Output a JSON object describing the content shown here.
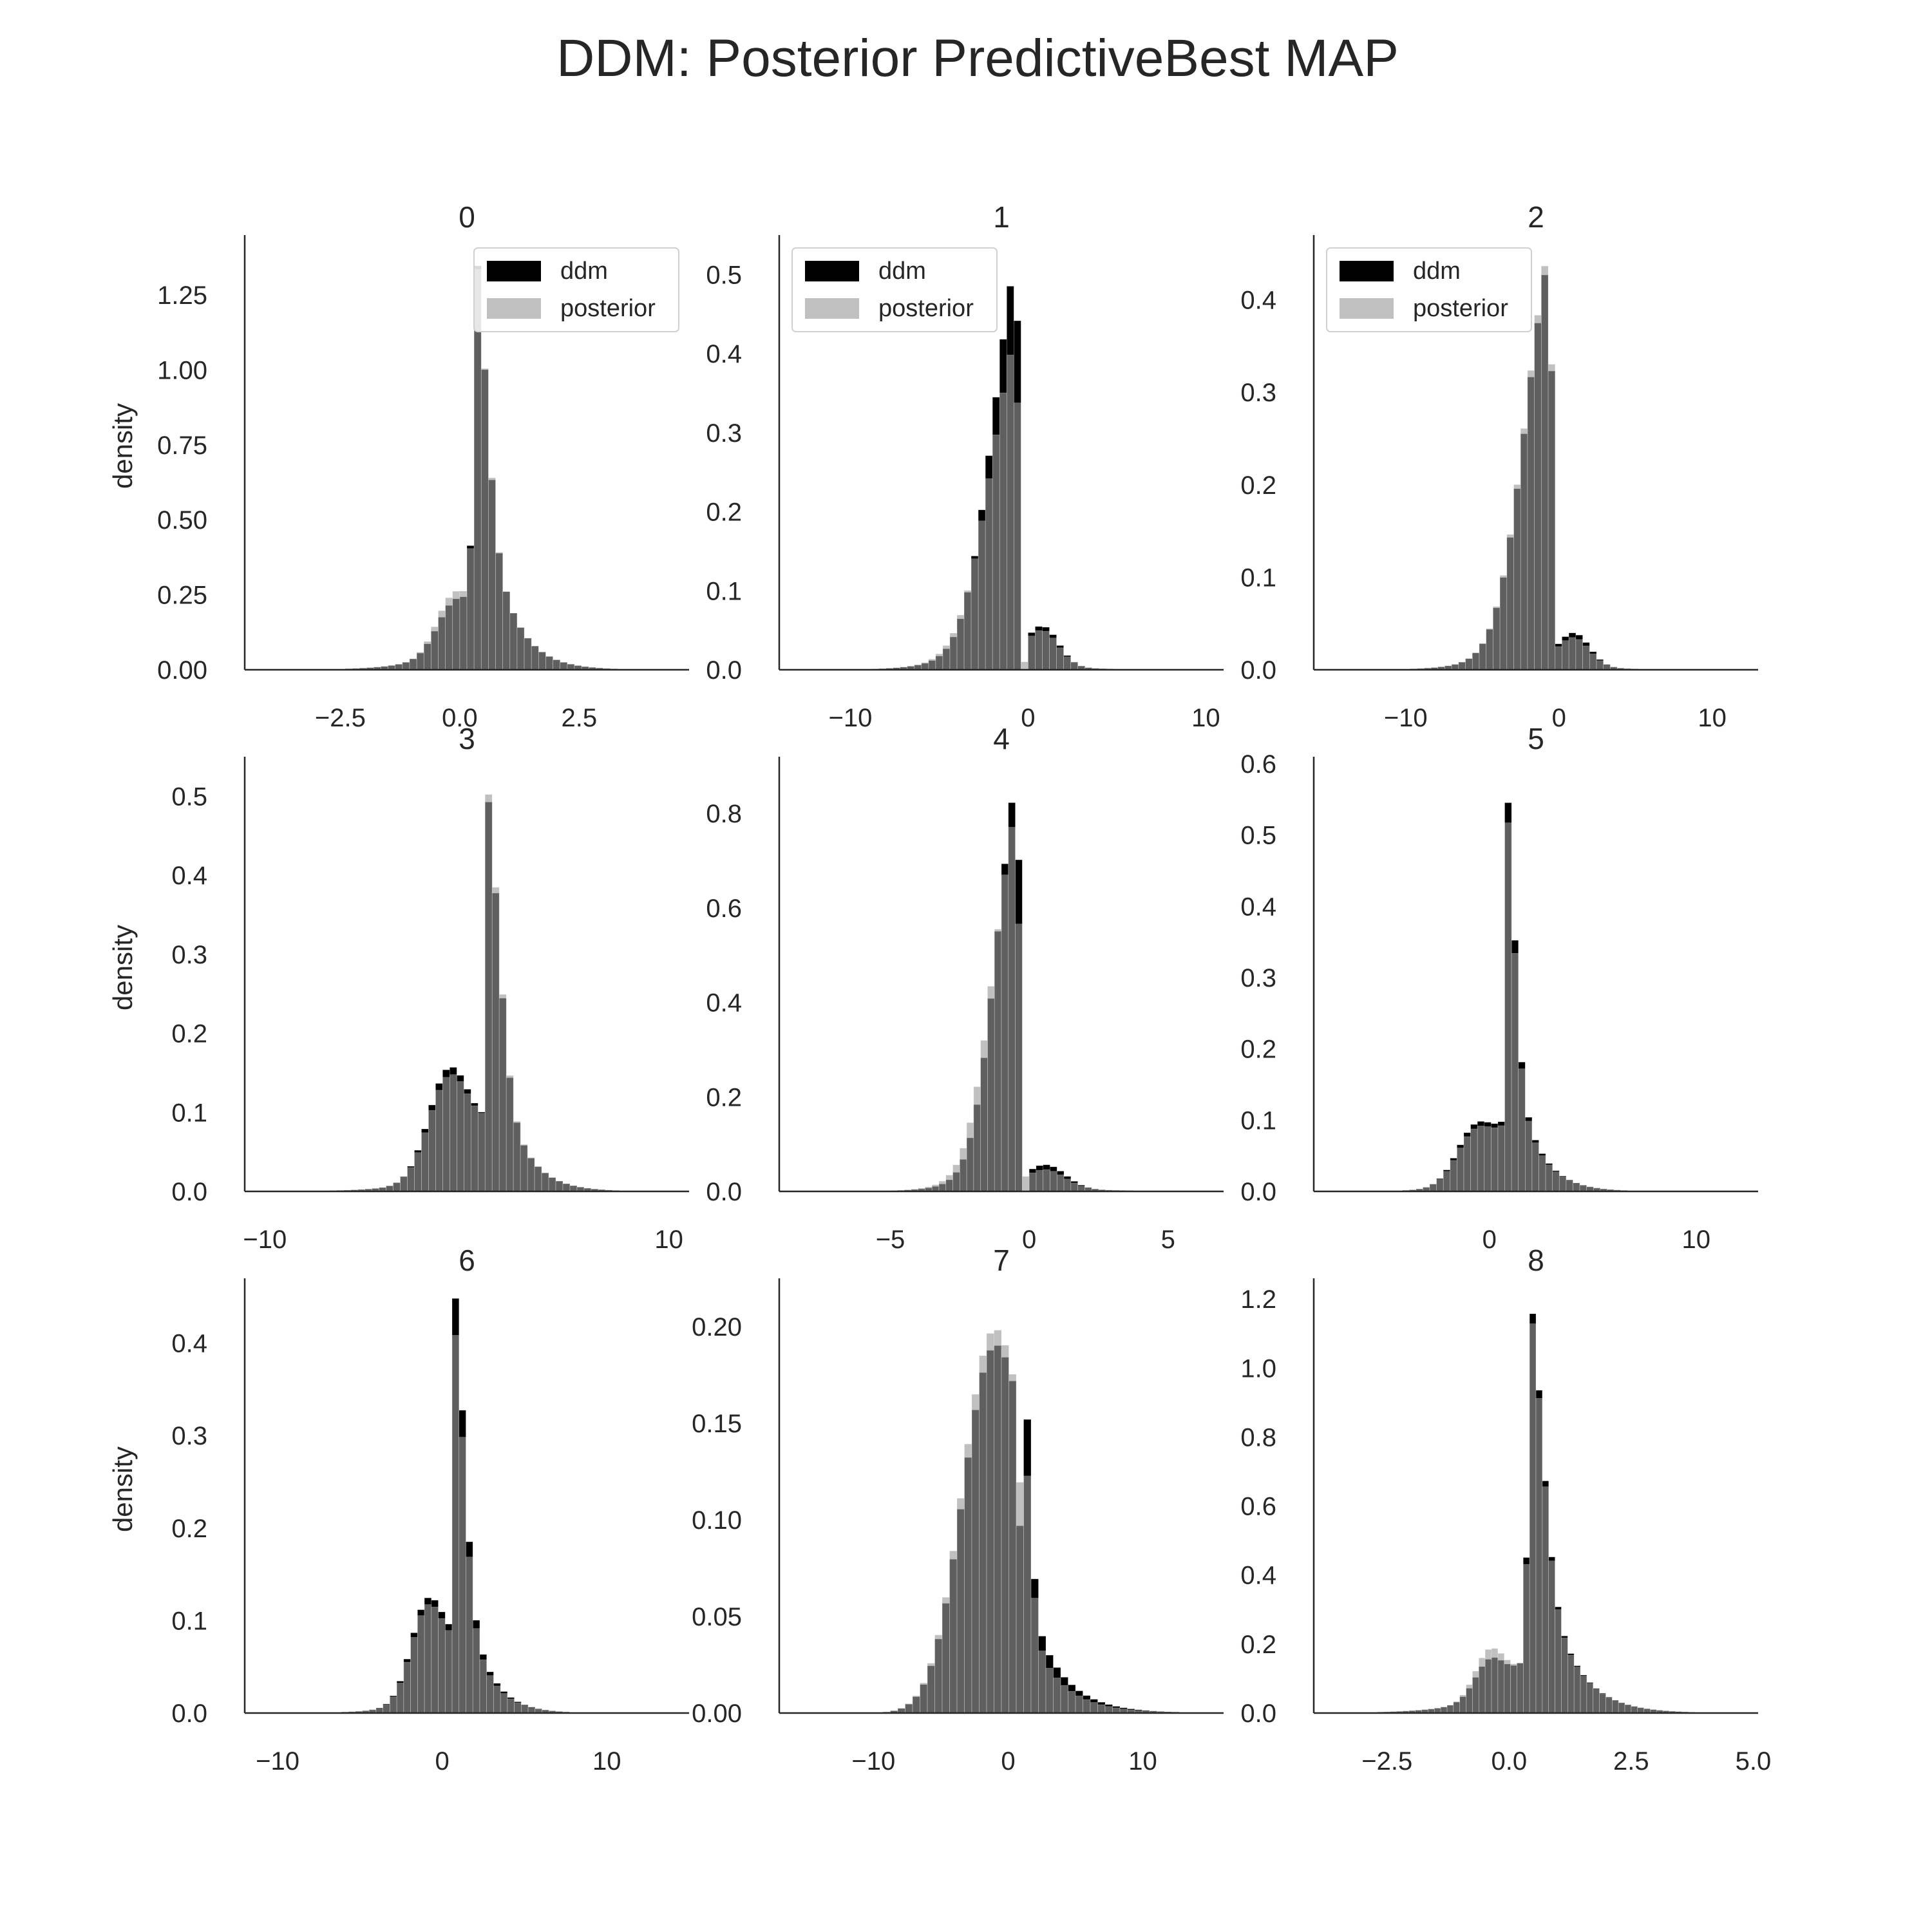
{
  "figure": {
    "title": "DDM: Posterior PredictiveBest MAP",
    "ylabel": "density"
  },
  "legend": {
    "entries": [
      "ddm",
      "posterior"
    ]
  },
  "colors": {
    "ddm": "#000000",
    "posterior": "#9a9a9a",
    "spine": "#262626",
    "text": "#262626"
  },
  "chart_data": [
    {
      "type": "bar",
      "title": "0",
      "xlim": [
        -4.5,
        4.8
      ],
      "ylim": [
        0,
        1.45
      ],
      "xticks": [
        -2.5,
        0.0,
        2.5
      ],
      "xticklabels": [
        "−2.5",
        "0.0",
        "2.5"
      ],
      "yticks": [
        0,
        0.25,
        0.5,
        0.75,
        1.0,
        1.25
      ],
      "yticklabels": [
        "0.00",
        "0.25",
        "0.50",
        "0.75",
        "1.00",
        "1.25"
      ],
      "ylabel": "density",
      "legend": "top-right",
      "series": [
        {
          "name": "ddm",
          "center": 0.35,
          "peak": 1.39,
          "sl": 0.22,
          "sr": 0.52,
          "ratio": 0.4,
          "lcenter": -0.15,
          "lsigma": 0.35,
          "lpeak": 0.13,
          "gap": 0.2,
          "gapval": 0.0,
          "binw": 0.15
        },
        {
          "name": "posterior",
          "center": 0.36,
          "peak": 1.36,
          "sl": 0.22,
          "sr": 0.52,
          "ratio": 0.4,
          "lcenter": -0.15,
          "lsigma": 0.35,
          "lpeak": 0.16,
          "gap": 0.2,
          "gapval": 0.01,
          "binw": 0.15
        }
      ]
    },
    {
      "type": "bar",
      "title": "1",
      "xlim": [
        -14,
        11
      ],
      "ylim": [
        0,
        0.55
      ],
      "xticks": [
        -10,
        0,
        10
      ],
      "xticklabels": [
        "−10",
        "0",
        "10"
      ],
      "yticks": [
        0,
        0.1,
        0.2,
        0.3,
        0.4,
        0.5
      ],
      "yticklabels": [
        "0.0",
        "0.1",
        "0.2",
        "0.3",
        "0.4",
        "0.5"
      ],
      "ylabel": "",
      "legend": "top-left",
      "series": [
        {
          "name": "ddm",
          "center": -0.7,
          "peak": 0.53,
          "sl": 1.5,
          "sr": 0.5,
          "ratio": 0.6,
          "lcenter": 0.8,
          "lsigma": 0.9,
          "lpeak": 0.05,
          "gap": 0.0,
          "gapval": 0.0,
          "binw": 0.4,
          "mirror": true
        },
        {
          "name": "posterior",
          "center": -0.8,
          "peak": 0.42,
          "sl": 1.6,
          "sr": 0.6,
          "ratio": 0.6,
          "lcenter": 0.8,
          "lsigma": 0.9,
          "lpeak": 0.045,
          "gap": 0.0,
          "gapval": 0.01,
          "binw": 0.4,
          "mirror": true
        }
      ]
    },
    {
      "type": "bar",
      "title": "2",
      "xlim": [
        -16,
        13
      ],
      "ylim": [
        0,
        0.47
      ],
      "xticks": [
        -10,
        0,
        10
      ],
      "xticklabels": [
        "−10",
        "0",
        "10"
      ],
      "yticks": [
        0,
        0.1,
        0.2,
        0.3,
        0.4
      ],
      "yticklabels": [
        "0.0",
        "0.1",
        "0.2",
        "0.3",
        "0.4"
      ],
      "ylabel": "",
      "legend": "top-left",
      "series": [
        {
          "name": "ddm",
          "center": -0.8,
          "peak": 0.44,
          "sl": 1.7,
          "sr": 0.6,
          "ratio": 0.6,
          "lcenter": 1.0,
          "lsigma": 1.0,
          "lpeak": 0.035,
          "gap": 0.0,
          "gapval": 0.0,
          "binw": 0.45,
          "mirror": true
        },
        {
          "name": "posterior",
          "center": -0.8,
          "peak": 0.45,
          "sl": 1.7,
          "sr": 0.6,
          "ratio": 0.6,
          "lcenter": 1.0,
          "lsigma": 1.0,
          "lpeak": 0.03,
          "gap": 0.0,
          "gapval": 0.01,
          "binw": 0.45,
          "mirror": true
        }
      ]
    },
    {
      "type": "bar",
      "title": "3",
      "xlim": [
        -11,
        11
      ],
      "ylim": [
        0,
        0.55
      ],
      "xticks": [
        -10,
        10
      ],
      "xticklabels": [
        "−10",
        "10"
      ],
      "yticks": [
        0,
        0.1,
        0.2,
        0.3,
        0.4,
        0.5
      ],
      "yticklabels": [
        "0.0",
        "0.1",
        "0.2",
        "0.3",
        "0.4",
        "0.5"
      ],
      "ylabel": "density",
      "legend": "none",
      "series": [
        {
          "name": "ddm",
          "center": 1.0,
          "peak": 0.51,
          "sl": 0.6,
          "sr": 1.2,
          "ratio": 0.5,
          "lcenter": -0.9,
          "lsigma": 1.0,
          "lpeak": 0.13,
          "gap": 0.2,
          "gapval": 0.0,
          "binw": 0.35
        },
        {
          "name": "posterior",
          "center": 1.0,
          "peak": 0.52,
          "sl": 0.6,
          "sr": 1.2,
          "ratio": 0.5,
          "lcenter": -0.9,
          "lsigma": 1.0,
          "lpeak": 0.12,
          "gap": 0.2,
          "gapval": 0.02,
          "binw": 0.35
        }
      ]
    },
    {
      "type": "bar",
      "title": "4",
      "xlim": [
        -9,
        7
      ],
      "ylim": [
        0,
        0.92
      ],
      "xticks": [
        -5,
        0,
        5
      ],
      "xticklabels": [
        "−5",
        "0",
        "5"
      ],
      "yticks": [
        0,
        0.2,
        0.4,
        0.6,
        0.8
      ],
      "yticklabels": [
        "0.0",
        "0.2",
        "0.4",
        "0.6",
        "0.8"
      ],
      "ylabel": "",
      "legend": "none",
      "series": [
        {
          "name": "ddm",
          "center": -0.5,
          "peak": 0.88,
          "sl": 0.8,
          "sr": 0.35,
          "ratio": 0.6,
          "lcenter": 0.6,
          "lsigma": 0.7,
          "lpeak": 0.05,
          "gap": 0.0,
          "gapval": 0.0,
          "binw": 0.25,
          "mirror": true
        },
        {
          "name": "posterior",
          "center": -0.6,
          "peak": 0.78,
          "sl": 0.85,
          "sr": 0.4,
          "ratio": 0.6,
          "lcenter": 0.6,
          "lsigma": 0.7,
          "lpeak": 0.04,
          "gap": 0.0,
          "gapval": 0.01,
          "binw": 0.25,
          "mirror": true
        }
      ]
    },
    {
      "type": "bar",
      "title": "5",
      "xlim": [
        -8.5,
        13
      ],
      "ylim": [
        0,
        0.61
      ],
      "xticks": [
        0,
        10
      ],
      "xticklabels": [
        "0",
        "10"
      ],
      "yticks": [
        0,
        0.1,
        0.2,
        0.3,
        0.4,
        0.5,
        0.6
      ],
      "yticklabels": [
        "0.0",
        "0.1",
        "0.2",
        "0.3",
        "0.4",
        "0.5",
        "0.6"
      ],
      "ylabel": "",
      "legend": "none",
      "series": [
        {
          "name": "ddm",
          "center": 0.8,
          "peak": 0.58,
          "sl": 0.4,
          "sr": 1.1,
          "ratio": 0.55,
          "lcenter": -0.7,
          "lsigma": 0.9,
          "lpeak": 0.07,
          "gap": 0.15,
          "gapval": 0.0,
          "binw": 0.33
        },
        {
          "name": "posterior",
          "center": 0.8,
          "peak": 0.55,
          "sl": 0.4,
          "sr": 1.1,
          "ratio": 0.55,
          "lcenter": -0.7,
          "lsigma": 0.9,
          "lpeak": 0.065,
          "gap": 0.15,
          "gapval": 0.02,
          "binw": 0.33
        }
      ]
    },
    {
      "type": "bar",
      "title": "6",
      "xlim": [
        -12,
        15
      ],
      "ylim": [
        0,
        0.47
      ],
      "xticks": [
        -10,
        0,
        10
      ],
      "xticklabels": [
        "−10",
        "0",
        "10"
      ],
      "yticks": [
        0,
        0.1,
        0.2,
        0.3,
        0.4
      ],
      "yticklabels": [
        "0.0",
        "0.1",
        "0.2",
        "0.3",
        "0.4"
      ],
      "ylabel": "density",
      "legend": "none",
      "series": [
        {
          "name": "ddm",
          "center": 0.8,
          "peak": 0.45,
          "sl": 0.55,
          "sr": 1.3,
          "ratio": 0.5,
          "lcenter": -0.9,
          "lsigma": 1.0,
          "lpeak": 0.1,
          "gap": 0.2,
          "gapval": 0.0,
          "binw": 0.42
        },
        {
          "name": "posterior",
          "center": 0.8,
          "peak": 0.41,
          "sl": 0.55,
          "sr": 1.3,
          "ratio": 0.5,
          "lcenter": -0.9,
          "lsigma": 1.0,
          "lpeak": 0.095,
          "gap": 0.2,
          "gapval": 0.02,
          "binw": 0.42
        }
      ]
    },
    {
      "type": "bar",
      "title": "7",
      "xlim": [
        -17,
        16
      ],
      "ylim": [
        0,
        0.225
      ],
      "xticks": [
        -10,
        0,
        10
      ],
      "xticklabels": [
        "−10",
        "0",
        "10"
      ],
      "yticks": [
        0,
        0.05,
        0.1,
        0.15,
        0.2
      ],
      "yticklabels": [
        "0.00",
        "0.05",
        "0.10",
        "0.15",
        "0.20"
      ],
      "ylabel": "",
      "legend": "none",
      "series": [
        {
          "name": "ddm",
          "center": 0.9,
          "peak": 0.22,
          "sl": 0.55,
          "sr": 2.3,
          "ratio": 0.65,
          "lcenter": -1.1,
          "lsigma": 2.3,
          "lpeak": 0.18,
          "gap": 0.45,
          "gapval": 0.02,
          "binw": 0.55
        },
        {
          "name": "posterior",
          "center": 0.9,
          "peak": 0.17,
          "sl": 0.6,
          "sr": 2.3,
          "ratio": 0.65,
          "lcenter": -1.1,
          "lsigma": 2.3,
          "lpeak": 0.19,
          "gap": 0.45,
          "gapval": 0.06,
          "binw": 0.55
        }
      ]
    },
    {
      "type": "bar",
      "title": "8",
      "xlim": [
        -4,
        5.1
      ],
      "ylim": [
        0,
        1.26
      ],
      "xticks": [
        -2.5,
        0.0,
        2.5,
        5.0
      ],
      "xticklabels": [
        "−2.5",
        "0.0",
        "2.5",
        "5.0"
      ],
      "yticks": [
        0,
        0.2,
        0.4,
        0.6,
        0.8,
        1.0,
        1.2
      ],
      "yticklabels": [
        "0.0",
        "0.2",
        "0.4",
        "0.6",
        "0.8",
        "1.0",
        "1.2"
      ],
      "ylabel": "",
      "legend": "none",
      "series": [
        {
          "name": "ddm",
          "center": 0.45,
          "peak": 1.2,
          "sl": 0.25,
          "sr": 0.6,
          "ratio": 0.45,
          "lcenter": -0.4,
          "lsigma": 0.3,
          "lpeak": 0.1,
          "gap": 0.1,
          "gapval": 0.06,
          "binw": 0.13
        },
        {
          "name": "posterior",
          "center": 0.45,
          "peak": 1.17,
          "sl": 0.25,
          "sr": 0.6,
          "ratio": 0.45,
          "lcenter": -0.4,
          "lsigma": 0.3,
          "lpeak": 0.13,
          "gap": 0.1,
          "gapval": 0.05,
          "binw": 0.13
        }
      ]
    }
  ]
}
